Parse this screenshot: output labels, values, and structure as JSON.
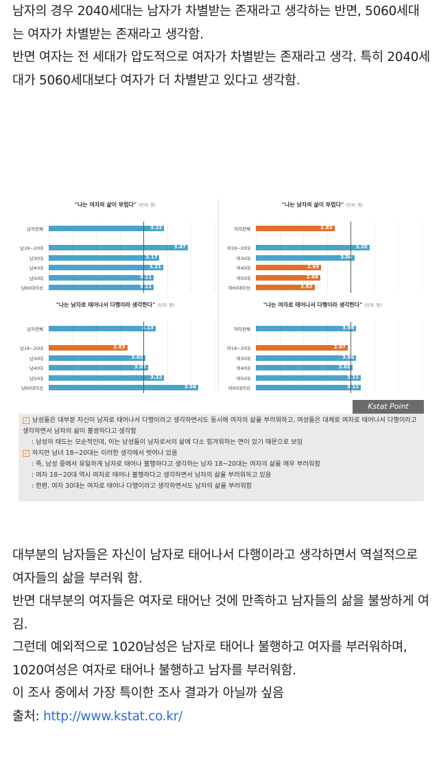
{
  "top_text": [
    "남자의 경우 2040세대는 남자가 차별받는 존재라고 생각하는 반면, 5060세대는 여자가 차별받는 존재라고 생각함.",
    "반면 여자는 전 세대가 압도적으로 여자가 차별받는 존재라고 생각. 특히 2040세대가 5060세대보다 여자가 더 차별받고 있다고 생각함."
  ],
  "colors": {
    "blue": "#4aa3c9",
    "orange": "#e0702b"
  },
  "chart_data": [
    {
      "type": "bar",
      "title": "\"나는 여자의 삶이 부럽다\"",
      "unit": "(단위: 점)",
      "categories": [
        "남자전체",
        "남18~20대",
        "남30대",
        "남40대",
        "남50대",
        "남60대이상"
      ],
      "values": [
        3.22,
        3.47,
        3.17,
        3.21,
        3.11,
        3.11
      ],
      "highlight": [
        "blue",
        "blue",
        "blue",
        "blue",
        "blue",
        "blue"
      ],
      "reference": 3.0
    },
    {
      "type": "bar",
      "title": "\"나는 남자의 삶이 부럽다\"",
      "unit": "(단위: 점)",
      "categories": [
        "여자전체",
        "여18~20대",
        "여30대",
        "여40대",
        "여50대",
        "여60대이상"
      ],
      "values": [
        2.83,
        3.2,
        3.04,
        2.69,
        2.68,
        2.62
      ],
      "highlight": [
        "orange",
        "blue",
        "blue",
        "orange",
        "orange",
        "orange"
      ],
      "reference": 3.0
    },
    {
      "type": "bar",
      "title": "\"나는 남자로 태어나서 다행이라 생각한다\"",
      "unit": "(단위: 점)",
      "categories": [
        "남자전체",
        "남18~20대",
        "남30대",
        "남40대",
        "남50대",
        "남60대이상"
      ],
      "values": [
        3.13,
        2.83,
        3.02,
        3.05,
        3.22,
        3.58
      ],
      "highlight": [
        "blue",
        "orange",
        "blue",
        "blue",
        "blue",
        "blue"
      ],
      "reference": 3.0
    },
    {
      "type": "bar",
      "title": "\"나는 여자로 태어나서 다행이라 생각한다\"",
      "unit": "(단위: 점)",
      "categories": [
        "여자전체",
        "여18~20대",
        "여30대",
        "여40대",
        "여50대",
        "여60대이상"
      ],
      "values": [
        3.06,
        2.97,
        3.06,
        3.02,
        3.11,
        3.11
      ],
      "highlight": [
        "blue",
        "orange",
        "blue",
        "blue",
        "blue",
        "blue"
      ],
      "reference": 3.0
    }
  ],
  "kstat": {
    "label": "Kstat Point",
    "lines": [
      {
        "check": true,
        "text": "남성들은 대부분 자신이 남자로 태어나서 다행이라고 생각하면서도 동시에 여자의 삶을 부러워하고, 여성들은 대체로 여자로 태어나서 다행이라고 생각하면서 남자의 삶이 불쌍하다고 생각함"
      },
      {
        "check": false,
        "text": ": 남성의 태도는 모순적인데, 이는 남성들이 남자로서의 삶에 다소 힘겨워하는 면이 있기 때문으로 보임"
      },
      {
        "check": true,
        "text": "하지만 남녀 18~20대는 이러한 생각에서 벗어나 있음"
      },
      {
        "check": false,
        "text": ": 즉, 남성 중에서 유일하게 남자로 태어나 불행하다고 생각하는 남자 18~20대는 여자의 삶을 매우 부러워함"
      },
      {
        "check": false,
        "text": ": 여자 18~20대 역시 여자로 태어나 불행하다고 생각하면서 남자의 삶을 부러워하고 있음"
      },
      {
        "check": false,
        "text": ": 한편, 여자 30대는 여자로 태어나 다행이라고 생각하면서도 남자의 삶을 부러워함"
      }
    ]
  },
  "bottom_text": [
    "대부분의 남자들은 자신이 남자로 태어나서 다행이라고 생각하면서 역설적으로 여자들의 삶을 부러워 함.",
    "반면 대부분의 여자들은 여자로 태어난 것에 만족하고 남자들의 삶을 불쌍하게 여김.",
    "그런데 예외적으로 1020남성은 남자로 태어나 불행하고 여자를 부러워하며, 1020여성은 여자로 태어나 불행하고 남자를 부러워함.",
    "이 조사 중에서 가장 특이한 조사 결과가 아닐까 싶음"
  ],
  "source": {
    "label": "출처: ",
    "link": "http://www.kstat.co.kr/"
  }
}
